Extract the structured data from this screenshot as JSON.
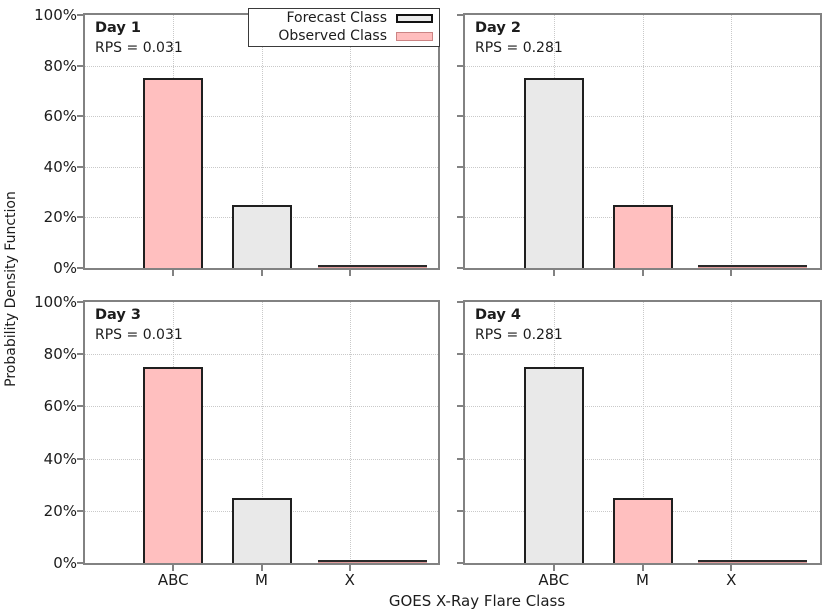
{
  "figure": {
    "y_axis_title": "Probability Density Function",
    "x_axis_title": "GOES X-Ray Flare Class"
  },
  "legend": {
    "items": [
      {
        "label": "Forecast Class",
        "style": "forecast",
        "fill": "#e9e9e9",
        "border": "#111111"
      },
      {
        "label": "Observed Class",
        "style": "observed",
        "fill": "#ffbdbd",
        "border": "#cc8484"
      }
    ]
  },
  "colors": {
    "forecast_fill": "#e9e9e9",
    "observed_fill": "#ffbfbf",
    "bar_border": "#1f1f1f",
    "axis": "#828282",
    "grid": "#c9c9c9",
    "background": "#ffffff"
  },
  "chart_data": {
    "type": "bar",
    "categories": [
      "ABC",
      "M",
      "X"
    ],
    "xlabel": "GOES X-Ray Flare Class",
    "ylabel": "Probability Density Function",
    "ylim": [
      0,
      100
    ],
    "grid": "dotted",
    "legend_position": "top-right of first panel",
    "y_ticks": [
      {
        "value": 0,
        "label": "0%"
      },
      {
        "value": 20,
        "label": "20%"
      },
      {
        "value": 40,
        "label": "40%"
      },
      {
        "value": 60,
        "label": "60%"
      },
      {
        "value": 80,
        "label": "80%"
      },
      {
        "value": 100,
        "label": "100%"
      }
    ],
    "panels": [
      {
        "title": "Day 1",
        "rps_label": "RPS = 0.031",
        "rps": 0.031,
        "observed_category": "ABC",
        "bars": [
          {
            "category": "ABC",
            "value": 75,
            "series": "Observed Class"
          },
          {
            "category": "M",
            "value": 25,
            "series": "Forecast Class"
          },
          {
            "category": "X",
            "value": 0,
            "series": "Forecast Class"
          }
        ]
      },
      {
        "title": "Day 2",
        "rps_label": "RPS = 0.281",
        "rps": 0.281,
        "observed_category": "M",
        "bars": [
          {
            "category": "ABC",
            "value": 75,
            "series": "Forecast Class"
          },
          {
            "category": "M",
            "value": 25,
            "series": "Observed Class"
          },
          {
            "category": "X",
            "value": 0,
            "series": "Forecast Class"
          }
        ]
      },
      {
        "title": "Day 3",
        "rps_label": "RPS = 0.031",
        "rps": 0.031,
        "observed_category": "ABC",
        "bars": [
          {
            "category": "ABC",
            "value": 75,
            "series": "Observed Class"
          },
          {
            "category": "M",
            "value": 25,
            "series": "Forecast Class"
          },
          {
            "category": "X",
            "value": 0,
            "series": "Forecast Class"
          }
        ]
      },
      {
        "title": "Day 4",
        "rps_label": "RPS = 0.281",
        "rps": 0.281,
        "observed_category": "M",
        "bars": [
          {
            "category": "ABC",
            "value": 75,
            "series": "Forecast Class"
          },
          {
            "category": "M",
            "value": 25,
            "series": "Observed Class"
          },
          {
            "category": "X",
            "value": 0,
            "series": "Forecast Class"
          }
        ]
      }
    ]
  }
}
